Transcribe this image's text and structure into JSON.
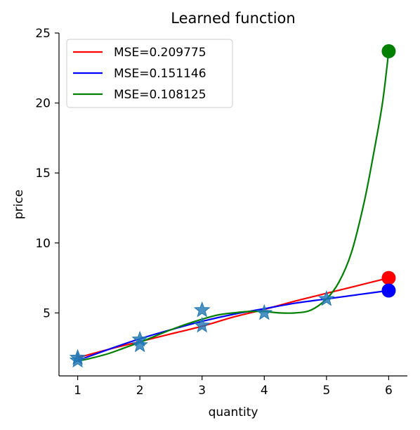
{
  "chart_data": {
    "type": "line",
    "title": "Learned function",
    "xlabel": "quantity",
    "ylabel": "price",
    "xlim": [
      0.7,
      6.3
    ],
    "ylim": [
      0.5,
      25
    ],
    "xticks": [
      1,
      2,
      3,
      4,
      5,
      6
    ],
    "yticks": [
      5,
      10,
      15,
      20,
      25
    ],
    "grid": false,
    "legend_position": "top-left",
    "data_points": {
      "marker": "star",
      "color": "#1f77b4",
      "points": [
        [
          1,
          1.6
        ],
        [
          1,
          1.8
        ],
        [
          2,
          2.7
        ],
        [
          2,
          3.1
        ],
        [
          3,
          4.1
        ],
        [
          3,
          5.2
        ],
        [
          4,
          5.0
        ],
        [
          5,
          6.0
        ]
      ]
    },
    "series": [
      {
        "name": "MSE=0.209775",
        "color": "#ff0000",
        "x": [
          1,
          1.5,
          2,
          2.5,
          3,
          3.5,
          4,
          4.5,
          5,
          5.5,
          6
        ],
        "y": [
          1.8,
          2.4,
          2.95,
          3.5,
          4.05,
          4.7,
          5.25,
          5.85,
          6.4,
          6.95,
          7.5
        ]
      },
      {
        "name": "MSE=0.151146",
        "color": "#0000ff",
        "x": [
          1,
          1.5,
          2,
          2.5,
          3,
          3.5,
          4,
          4.5,
          5,
          5.5,
          6
        ],
        "y": [
          1.6,
          2.4,
          3.15,
          3.8,
          4.4,
          4.9,
          5.3,
          5.7,
          6.0,
          6.3,
          6.6
        ]
      },
      {
        "name": "MSE=0.108125",
        "color": "#008000",
        "x": [
          1,
          1.25,
          1.5,
          1.75,
          2,
          2.25,
          2.5,
          2.75,
          3,
          3.25,
          3.5,
          3.75,
          4,
          4.25,
          4.5,
          4.75,
          5,
          5.2,
          5.4,
          5.6,
          5.75,
          5.9,
          6
        ],
        "y": [
          1.55,
          1.8,
          2.1,
          2.5,
          2.9,
          3.35,
          3.8,
          4.2,
          4.55,
          4.85,
          5.0,
          5.1,
          5.1,
          5.0,
          5.0,
          5.2,
          6.0,
          7.2,
          9.3,
          12.8,
          16.2,
          20.0,
          23.7
        ]
      }
    ],
    "endpoints": [
      {
        "x": 6,
        "y": 7.5,
        "color": "#ff0000"
      },
      {
        "x": 6,
        "y": 6.6,
        "color": "#0000ff"
      },
      {
        "x": 6,
        "y": 23.7,
        "color": "#008000"
      }
    ]
  }
}
